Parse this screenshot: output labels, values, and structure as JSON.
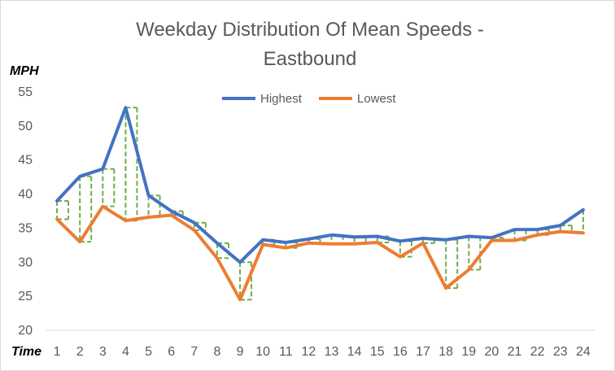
{
  "chart_data": {
    "type": "line",
    "title": [
      "Weekday Distribution Of Mean Speeds -",
      "Eastbound"
    ],
    "ylabel": "MPH",
    "xlabel": "Time",
    "ylim": [
      20,
      55
    ],
    "yticks": [
      20,
      25,
      30,
      35,
      40,
      45,
      50,
      55
    ],
    "x": [
      "1",
      "2",
      "3",
      "4",
      "5",
      "6",
      "7",
      "8",
      "9",
      "10",
      "11",
      "12",
      "13",
      "14",
      "15",
      "16",
      "17",
      "18",
      "19",
      "20",
      "21",
      "22",
      "23",
      "24"
    ],
    "series": [
      {
        "name": "Highest",
        "color": "#4472C4",
        "values": [
          39.0,
          42.6,
          43.7,
          52.7,
          39.8,
          37.5,
          35.8,
          32.8,
          30.0,
          33.3,
          32.9,
          33.4,
          34.0,
          33.7,
          33.8,
          33.1,
          33.5,
          33.3,
          33.8,
          33.6,
          34.8,
          34.8,
          35.4,
          37.7
        ]
      },
      {
        "name": "Lowest",
        "color": "#ED7D31",
        "values": [
          36.3,
          33.0,
          38.2,
          36.1,
          36.6,
          36.9,
          34.7,
          30.6,
          24.5,
          32.6,
          32.1,
          32.8,
          32.7,
          32.7,
          32.9,
          30.8,
          32.8,
          26.2,
          28.9,
          33.2,
          33.2,
          34.0,
          34.5,
          34.3
        ]
      }
    ],
    "highlow_color": "#70AD47",
    "legend": "top-center"
  }
}
